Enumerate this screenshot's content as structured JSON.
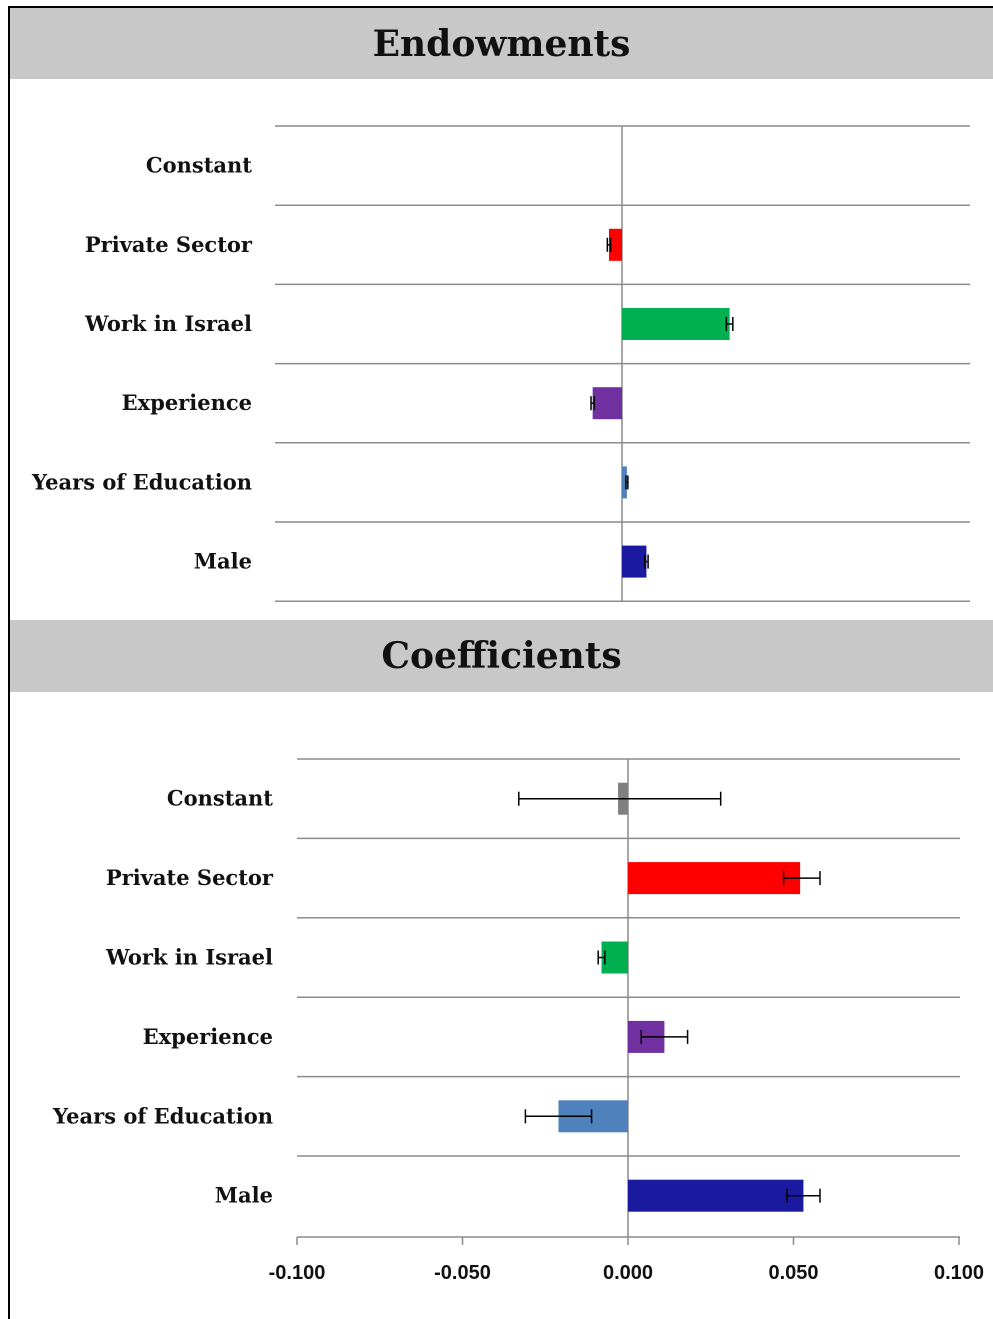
{
  "chart_data": [
    {
      "type": "bar",
      "orientation": "horizontal",
      "title": "Endowments",
      "categories": [
        "Constant",
        "Private Sector",
        "Work in Israel",
        "Experience",
        "Years of Education",
        "Male"
      ],
      "values": [
        0.0,
        -0.004,
        0.033,
        -0.009,
        0.0015,
        0.0075
      ],
      "error_low": [
        0.0,
        -0.0045,
        0.032,
        -0.0095,
        0.0012,
        0.007
      ],
      "error_high": [
        0.0,
        -0.0035,
        0.034,
        -0.0085,
        0.0018,
        0.008
      ],
      "colors": [
        "#808080",
        "#ff0000",
        "#00b050",
        "#7030a0",
        "#4f81bd",
        "#1a1aa0"
      ],
      "xlim": [
        -0.1,
        0.1
      ],
      "grid": true
    },
    {
      "type": "bar",
      "orientation": "horizontal",
      "title": "Coefficients",
      "categories": [
        "Constant",
        "Private Sector",
        "Work in Israel",
        "Experience",
        "Years of Education",
        "Male"
      ],
      "values": [
        -0.003,
        0.052,
        -0.008,
        0.011,
        -0.021,
        0.053
      ],
      "error_low": [
        -0.033,
        0.047,
        -0.009,
        0.004,
        -0.031,
        0.048
      ],
      "error_high": [
        0.028,
        0.058,
        -0.007,
        0.018,
        -0.011,
        0.058
      ],
      "colors": [
        "#808080",
        "#ff0000",
        "#00b050",
        "#7030a0",
        "#4f81bd",
        "#1a1aa0"
      ],
      "xlim": [
        -0.1,
        0.1
      ],
      "xticks": [
        "-0.100",
        "-0.050",
        "0.000",
        "0.050",
        "0.100"
      ],
      "grid": true
    }
  ]
}
